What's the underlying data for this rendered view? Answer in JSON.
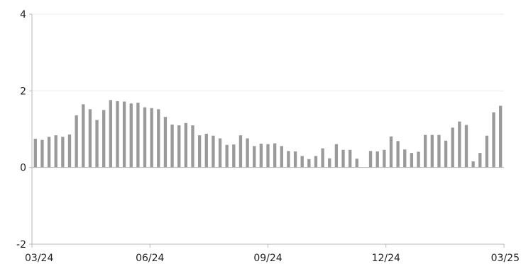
{
  "chart_data": {
    "type": "bar",
    "title": "",
    "xlabel": "",
    "ylabel": "",
    "ylim": [
      -2,
      4
    ],
    "yticks": [
      "-2",
      "0",
      "2",
      "4"
    ],
    "xticks": [
      "03/24",
      "06/24",
      "09/24",
      "12/24",
      "03/25"
    ],
    "grid": true,
    "bar_color": "#9a9a9a",
    "series": [
      {
        "values": [
          0.75,
          0.72,
          0.8,
          0.84,
          0.8,
          0.86,
          1.36,
          1.65,
          1.52,
          1.24,
          1.5,
          1.76,
          1.73,
          1.72,
          1.67,
          1.69,
          1.57,
          1.55,
          1.52,
          1.32,
          1.12,
          1.1,
          1.16,
          1.1,
          0.84,
          0.88,
          0.83,
          0.76,
          0.59,
          0.6,
          0.84,
          0.76,
          0.56,
          0.62,
          0.61,
          0.63,
          0.56,
          0.43,
          0.42,
          0.3,
          0.22,
          0.3,
          0.5,
          0.24,
          0.61,
          0.46,
          0.46,
          0.23,
          null,
          0.43,
          0.42,
          0.46,
          0.81,
          0.69,
          0.47,
          0.38,
          0.41,
          0.85,
          0.85,
          0.85,
          0.7,
          1.04,
          1.2,
          1.11,
          0.16,
          0.38,
          0.83,
          1.44,
          1.61
        ]
      }
    ]
  }
}
